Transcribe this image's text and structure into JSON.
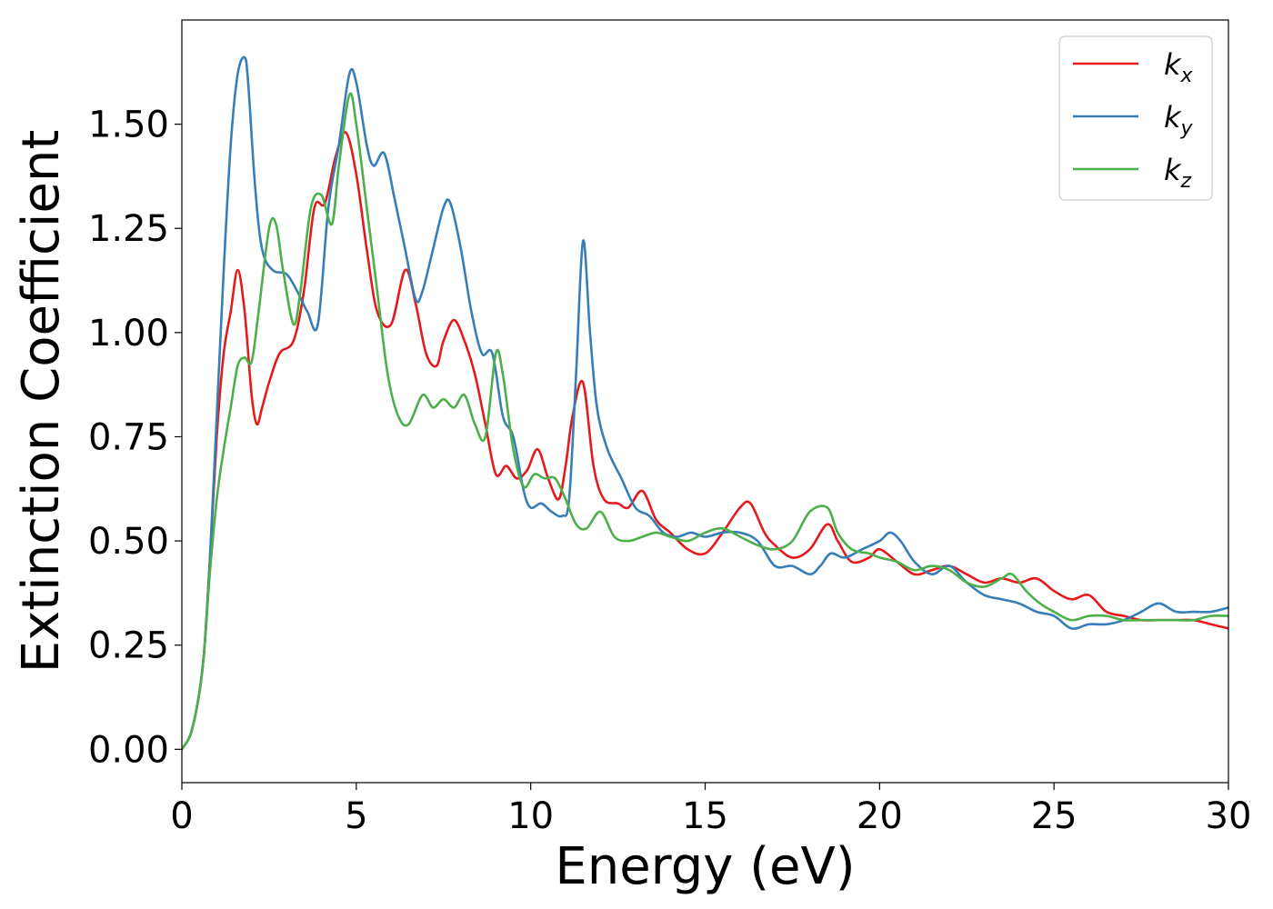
{
  "chart_data": {
    "type": "line",
    "title": "",
    "xlabel": "Energy (eV)",
    "ylabel": "Extinction Coefficient",
    "xlim": [
      0,
      30
    ],
    "ylim": [
      -0.08,
      1.75
    ],
    "xticks": [
      0,
      5,
      10,
      15,
      20,
      25,
      30
    ],
    "xtick_labels": [
      "0",
      "5",
      "10",
      "15",
      "20",
      "25",
      "30"
    ],
    "yticks": [
      0.0,
      0.25,
      0.5,
      0.75,
      1.0,
      1.25,
      1.5
    ],
    "ytick_labels": [
      "0.00",
      "0.25",
      "0.50",
      "0.75",
      "1.00",
      "1.25",
      "1.50"
    ],
    "grid": false,
    "legend": "top-right",
    "series": [
      {
        "name": "k",
        "sub": "x",
        "color": "#e41a1c",
        "x": [
          0,
          0.3,
          0.6,
          0.8,
          1.0,
          1.2,
          1.4,
          1.6,
          1.8,
          2.0,
          2.15,
          2.3,
          2.5,
          2.8,
          3.2,
          3.5,
          3.8,
          4.1,
          4.4,
          4.7,
          5.0,
          5.3,
          5.6,
          6.0,
          6.4,
          6.7,
          7.0,
          7.3,
          7.5,
          7.8,
          8.1,
          8.4,
          8.7,
          9.0,
          9.3,
          9.6,
          9.9,
          10.2,
          10.5,
          10.8,
          11.0,
          11.2,
          11.5,
          11.8,
          12.1,
          12.5,
          12.8,
          13.2,
          13.6,
          14.0,
          14.5,
          15.0,
          15.5,
          16.0,
          16.3,
          16.7,
          17.0,
          17.5,
          18.0,
          18.5,
          18.8,
          19.2,
          19.7,
          20.0,
          20.5,
          21.0,
          21.5,
          22.0,
          22.5,
          23.0,
          23.5,
          24.0,
          24.5,
          25.0,
          25.5,
          26.0,
          26.5,
          27.0,
          27.5,
          28.0,
          28.5,
          29.0,
          29.5,
          30.0
        ],
        "y": [
          0,
          0.05,
          0.2,
          0.45,
          0.75,
          0.95,
          1.05,
          1.15,
          1.05,
          0.85,
          0.78,
          0.82,
          0.88,
          0.95,
          0.98,
          1.1,
          1.3,
          1.31,
          1.42,
          1.48,
          1.38,
          1.2,
          1.05,
          1.02,
          1.15,
          1.07,
          0.95,
          0.92,
          0.98,
          1.03,
          0.98,
          0.9,
          0.78,
          0.66,
          0.68,
          0.65,
          0.67,
          0.72,
          0.65,
          0.6,
          0.68,
          0.8,
          0.88,
          0.68,
          0.6,
          0.59,
          0.58,
          0.62,
          0.55,
          0.52,
          0.48,
          0.47,
          0.52,
          0.58,
          0.59,
          0.52,
          0.49,
          0.46,
          0.48,
          0.54,
          0.5,
          0.45,
          0.46,
          0.48,
          0.45,
          0.42,
          0.43,
          0.44,
          0.42,
          0.4,
          0.41,
          0.4,
          0.41,
          0.38,
          0.36,
          0.37,
          0.33,
          0.32,
          0.31,
          0.31,
          0.31,
          0.31,
          0.3,
          0.29
        ]
      },
      {
        "name": "k",
        "sub": "y",
        "color": "#377eb8",
        "x": [
          0,
          0.3,
          0.6,
          0.8,
          1.0,
          1.2,
          1.4,
          1.6,
          1.8,
          1.9,
          2.1,
          2.3,
          2.6,
          3.0,
          3.3,
          3.6,
          3.9,
          4.2,
          4.5,
          4.8,
          5.0,
          5.3,
          5.5,
          5.8,
          6.1,
          6.4,
          6.7,
          6.9,
          7.2,
          7.5,
          7.7,
          8.0,
          8.3,
          8.6,
          8.9,
          9.2,
          9.5,
          9.8,
          10.0,
          10.3,
          10.6,
          10.9,
          11.1,
          11.3,
          11.5,
          11.7,
          11.9,
          12.2,
          12.6,
          13.0,
          13.4,
          13.8,
          14.2,
          14.6,
          15.0,
          15.5,
          16.0,
          16.5,
          17.0,
          17.5,
          18.0,
          18.3,
          18.6,
          19.0,
          19.5,
          20.0,
          20.3,
          20.6,
          21.0,
          21.5,
          22.0,
          22.5,
          23.0,
          23.5,
          24.0,
          24.5,
          25.0,
          25.5,
          26.0,
          26.5,
          27.0,
          27.5,
          28.0,
          28.5,
          29.0,
          29.5,
          30.0
        ],
        "y": [
          0,
          0.05,
          0.2,
          0.45,
          0.8,
          1.15,
          1.45,
          1.62,
          1.66,
          1.6,
          1.35,
          1.2,
          1.15,
          1.14,
          1.1,
          1.05,
          1.02,
          1.3,
          1.45,
          1.62,
          1.6,
          1.45,
          1.4,
          1.43,
          1.32,
          1.2,
          1.08,
          1.1,
          1.2,
          1.3,
          1.31,
          1.2,
          1.05,
          0.95,
          0.95,
          0.8,
          0.75,
          0.62,
          0.58,
          0.59,
          0.57,
          0.56,
          0.6,
          0.9,
          1.22,
          1.0,
          0.82,
          0.72,
          0.65,
          0.58,
          0.56,
          0.52,
          0.51,
          0.52,
          0.51,
          0.52,
          0.52,
          0.5,
          0.44,
          0.44,
          0.42,
          0.44,
          0.47,
          0.46,
          0.48,
          0.5,
          0.52,
          0.5,
          0.45,
          0.42,
          0.44,
          0.4,
          0.37,
          0.36,
          0.35,
          0.33,
          0.32,
          0.29,
          0.3,
          0.3,
          0.31,
          0.33,
          0.35,
          0.33,
          0.33,
          0.33,
          0.34
        ]
      },
      {
        "name": "k",
        "sub": "z",
        "color": "#4daf4a",
        "x": [
          0,
          0.3,
          0.6,
          0.8,
          1.0,
          1.2,
          1.4,
          1.6,
          1.8,
          2.0,
          2.2,
          2.5,
          2.7,
          2.9,
          3.2,
          3.4,
          3.7,
          4.0,
          4.3,
          4.5,
          4.8,
          5.0,
          5.3,
          5.6,
          5.9,
          6.2,
          6.5,
          6.9,
          7.2,
          7.5,
          7.8,
          8.1,
          8.4,
          8.7,
          9.0,
          9.2,
          9.5,
          9.8,
          10.1,
          10.4,
          10.7,
          11.0,
          11.3,
          11.6,
          12.0,
          12.4,
          12.8,
          13.2,
          13.6,
          14.0,
          14.5,
          15.0,
          15.5,
          16.0,
          16.5,
          17.0,
          17.5,
          18.0,
          18.5,
          18.8,
          19.2,
          19.7,
          20.0,
          20.5,
          21.0,
          21.5,
          22.0,
          22.5,
          23.0,
          23.5,
          23.8,
          24.2,
          24.6,
          25.0,
          25.5,
          26.0,
          26.5,
          27.0,
          27.5,
          28.0,
          28.5,
          29.0,
          29.5,
          30.0
        ],
        "y": [
          0,
          0.05,
          0.2,
          0.42,
          0.6,
          0.72,
          0.82,
          0.92,
          0.94,
          0.93,
          1.05,
          1.25,
          1.26,
          1.15,
          1.02,
          1.1,
          1.3,
          1.33,
          1.26,
          1.4,
          1.57,
          1.5,
          1.3,
          1.1,
          0.9,
          0.8,
          0.78,
          0.85,
          0.82,
          0.84,
          0.82,
          0.85,
          0.78,
          0.75,
          0.95,
          0.9,
          0.72,
          0.63,
          0.66,
          0.65,
          0.65,
          0.6,
          0.54,
          0.53,
          0.57,
          0.51,
          0.5,
          0.51,
          0.52,
          0.51,
          0.5,
          0.52,
          0.53,
          0.51,
          0.49,
          0.48,
          0.5,
          0.57,
          0.58,
          0.52,
          0.48,
          0.47,
          0.46,
          0.45,
          0.43,
          0.44,
          0.43,
          0.4,
          0.39,
          0.41,
          0.42,
          0.38,
          0.35,
          0.33,
          0.31,
          0.32,
          0.32,
          0.31,
          0.31,
          0.31,
          0.31,
          0.31,
          0.32,
          0.32
        ]
      }
    ]
  }
}
